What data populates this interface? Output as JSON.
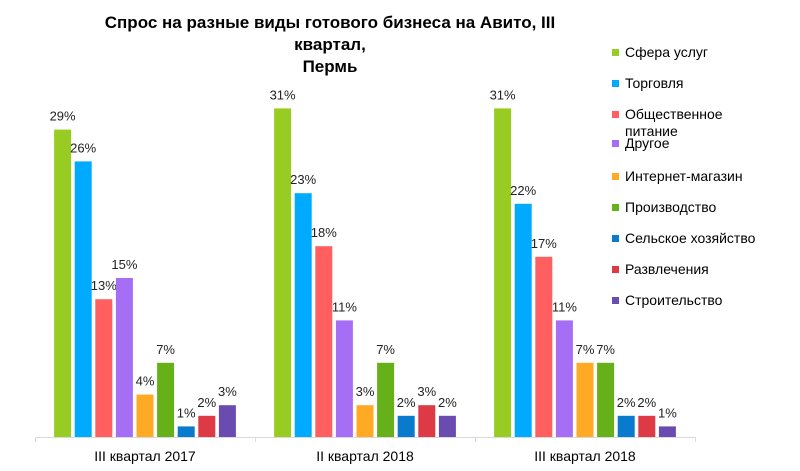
{
  "chart_data": {
    "type": "bar",
    "title": "Спрос на разные виды готового бизнеса на Авито, III квартал, Пермь",
    "title_lines": [
      "Спрос на разные виды готового бизнеса на Авито, III квартал,",
      "Пермь"
    ],
    "categories": [
      "III квартал 2017",
      "II квартал 2018",
      "III квартал 2018"
    ],
    "ylim": [
      0,
      32
    ],
    "grid": false,
    "legend_position": "right",
    "value_suffix": "%",
    "series": [
      {
        "name": "Сфера услуг",
        "color": "#99cc22",
        "values": [
          29,
          31,
          31
        ]
      },
      {
        "name": "Торговля",
        "color": "#00aaff",
        "values": [
          26,
          23,
          22
        ]
      },
      {
        "name": "Общественное питание",
        "color": "#ff5f5f",
        "values": [
          13,
          18,
          17
        ]
      },
      {
        "name": "Другое",
        "color": "#a56ef5",
        "values": [
          15,
          11,
          11
        ]
      },
      {
        "name": "Интернет-магазин",
        "color": "#ffaa22",
        "values": [
          4,
          3,
          7
        ]
      },
      {
        "name": "Производство",
        "color": "#66b01a",
        "values": [
          7,
          7,
          7
        ]
      },
      {
        "name": "Сельское хозяйство",
        "color": "#0a7acc",
        "values": [
          1,
          2,
          2
        ]
      },
      {
        "name": "Развлечения",
        "color": "#dd3a46",
        "values": [
          2,
          3,
          2
        ]
      },
      {
        "name": "Строительство",
        "color": "#6a4bb0",
        "values": [
          3,
          2,
          1
        ]
      }
    ]
  }
}
